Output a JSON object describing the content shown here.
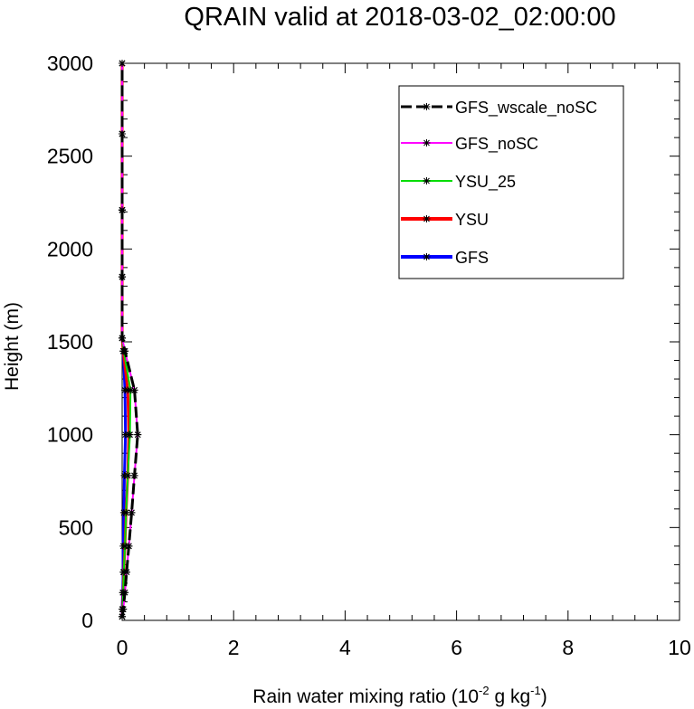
{
  "chart_data": {
    "type": "line",
    "title": "QRAIN valid at 2018-03-02_02:00:00",
    "xlabel": "Rain water mixing ratio (10",
    "xlabel_exp1": "-2",
    "xlabel_mid": " g kg",
    "xlabel_exp2": "-1",
    "xlabel_end": ")",
    "ylabel": "Height (m)",
    "xlim": [
      0,
      10
    ],
    "ylim": [
      0,
      3000
    ],
    "x_ticks": [
      0,
      2,
      4,
      6,
      8,
      10
    ],
    "y_ticks": [
      0,
      500,
      1000,
      1500,
      2000,
      2500,
      3000
    ],
    "legend_position": "top-right",
    "grid": false,
    "series": [
      {
        "name": "GFS",
        "color": "#0000ff",
        "dash": "solid",
        "points": [
          [
            0,
            20
          ],
          [
            0,
            60
          ],
          [
            0.01,
            150
          ],
          [
            0.02,
            260
          ],
          [
            0.02,
            400
          ],
          [
            0.03,
            580
          ],
          [
            0.04,
            780
          ],
          [
            0.06,
            1000
          ],
          [
            0.05,
            1240
          ],
          [
            0.02,
            1450
          ],
          [
            0,
            1520
          ],
          [
            0,
            1850
          ],
          [
            0,
            2210
          ],
          [
            0,
            2620
          ],
          [
            0,
            3000
          ]
        ]
      },
      {
        "name": "YSU",
        "color": "#ff0000",
        "dash": "solid",
        "points": [
          [
            0,
            20
          ],
          [
            0.01,
            60
          ],
          [
            0.02,
            150
          ],
          [
            0.03,
            260
          ],
          [
            0.05,
            400
          ],
          [
            0.07,
            580
          ],
          [
            0.1,
            780
          ],
          [
            0.12,
            1000
          ],
          [
            0.1,
            1240
          ],
          [
            0.02,
            1450
          ],
          [
            0,
            1520
          ],
          [
            0,
            1850
          ],
          [
            0,
            2210
          ],
          [
            0,
            2620
          ],
          [
            0,
            3000
          ]
        ]
      },
      {
        "name": "YSU_25",
        "color": "#00dd00",
        "dash": "solid",
        "points": [
          [
            0,
            20
          ],
          [
            0.01,
            60
          ],
          [
            0.02,
            150
          ],
          [
            0.03,
            260
          ],
          [
            0.05,
            400
          ],
          [
            0.07,
            580
          ],
          [
            0.1,
            780
          ],
          [
            0.14,
            1000
          ],
          [
            0.15,
            1240
          ],
          [
            0.03,
            1450
          ],
          [
            0,
            1520
          ],
          [
            0,
            1850
          ],
          [
            0,
            2210
          ],
          [
            0,
            2620
          ],
          [
            0,
            3000
          ]
        ]
      },
      {
        "name": "GFS_noSC",
        "color": "#ff00ff",
        "dash": "solid",
        "points": [
          [
            0,
            20
          ],
          [
            0.02,
            60
          ],
          [
            0.05,
            150
          ],
          [
            0.08,
            260
          ],
          [
            0.12,
            400
          ],
          [
            0.17,
            580
          ],
          [
            0.22,
            780
          ],
          [
            0.28,
            1000
          ],
          [
            0.22,
            1240
          ],
          [
            0.05,
            1450
          ],
          [
            0,
            1520
          ],
          [
            0,
            1850
          ],
          [
            0,
            2210
          ],
          [
            0,
            2620
          ],
          [
            0,
            3000
          ]
        ]
      },
      {
        "name": "GFS_wscale_noSC",
        "color": "#000000",
        "dash": "dashed",
        "points": [
          [
            0,
            20
          ],
          [
            0.02,
            60
          ],
          [
            0.05,
            150
          ],
          [
            0.08,
            260
          ],
          [
            0.12,
            400
          ],
          [
            0.17,
            580
          ],
          [
            0.22,
            780
          ],
          [
            0.28,
            1000
          ],
          [
            0.22,
            1240
          ],
          [
            0.05,
            1450
          ],
          [
            0,
            1520
          ],
          [
            0,
            1850
          ],
          [
            0,
            2210
          ],
          [
            0,
            2620
          ],
          [
            0,
            3000
          ]
        ]
      }
    ],
    "legend_order": [
      "GFS_wscale_noSC",
      "GFS_noSC",
      "YSU_25",
      "YSU",
      "GFS"
    ]
  }
}
